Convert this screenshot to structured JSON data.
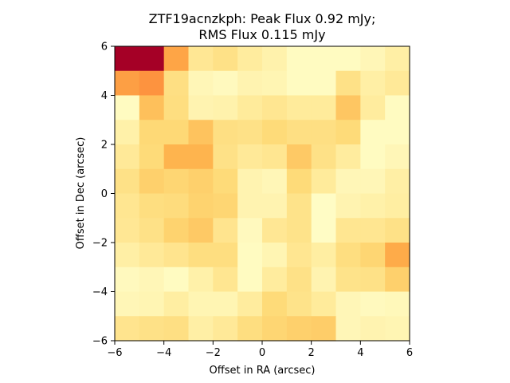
{
  "chart_data": {
    "type": "heatmap",
    "title_lines": [
      "ZTF19acnzkph: Peak Flux 0.92 mJy;",
      "RMS Flux 0.115 mJy"
    ],
    "xlabel": "Offset in RA (arcsec)",
    "ylabel": "Offset in Dec (arcsec)",
    "xlim": [
      -6,
      6
    ],
    "ylim": [
      -6,
      6
    ],
    "xticks": [
      -6,
      -4,
      -2,
      0,
      2,
      4,
      6
    ],
    "yticks": [
      -6,
      -4,
      -2,
      0,
      2,
      4,
      6
    ],
    "colormap": "YlOrRd",
    "color_stops": [
      "#ffffcc",
      "#ffeda0",
      "#fed976",
      "#feb24c",
      "#fd8d3c",
      "#fc4e2a",
      "#e31a1c",
      "#bd0026",
      "#a50026"
    ],
    "grid": false,
    "rows_top_to_bottom": [
      [
        1.0,
        1.0,
        0.42,
        0.16,
        0.2,
        0.13,
        0.09,
        0.03,
        0.03,
        0.03,
        0.06,
        0.11
      ],
      [
        0.44,
        0.48,
        0.21,
        0.06,
        0.04,
        0.08,
        0.07,
        0.03,
        0.03,
        0.2,
        0.11,
        0.15
      ],
      [
        0.03,
        0.33,
        0.22,
        0.08,
        0.09,
        0.14,
        0.17,
        0.14,
        0.14,
        0.31,
        0.13,
        0.03
      ],
      [
        0.1,
        0.25,
        0.25,
        0.32,
        0.21,
        0.2,
        0.24,
        0.21,
        0.21,
        0.24,
        0.03,
        0.03
      ],
      [
        0.15,
        0.24,
        0.37,
        0.37,
        0.2,
        0.15,
        0.17,
        0.3,
        0.2,
        0.13,
        0.03,
        0.06
      ],
      [
        0.2,
        0.28,
        0.26,
        0.28,
        0.24,
        0.08,
        0.06,
        0.24,
        0.14,
        0.06,
        0.06,
        0.11
      ],
      [
        0.17,
        0.22,
        0.23,
        0.27,
        0.26,
        0.08,
        0.08,
        0.19,
        0.02,
        0.08,
        0.1,
        0.12
      ],
      [
        0.16,
        0.2,
        0.27,
        0.3,
        0.18,
        0.04,
        0.16,
        0.19,
        0.02,
        0.17,
        0.17,
        0.2
      ],
      [
        0.11,
        0.15,
        0.18,
        0.22,
        0.22,
        0.03,
        0.07,
        0.17,
        0.12,
        0.22,
        0.26,
        0.4
      ],
      [
        0.04,
        0.06,
        0.03,
        0.1,
        0.17,
        0.03,
        0.13,
        0.2,
        0.08,
        0.19,
        0.2,
        0.28
      ],
      [
        0.06,
        0.07,
        0.12,
        0.07,
        0.07,
        0.13,
        0.24,
        0.19,
        0.14,
        0.06,
        0.04,
        0.05
      ],
      [
        0.18,
        0.2,
        0.21,
        0.11,
        0.15,
        0.22,
        0.26,
        0.28,
        0.29,
        0.06,
        0.08,
        0.07
      ]
    ]
  }
}
